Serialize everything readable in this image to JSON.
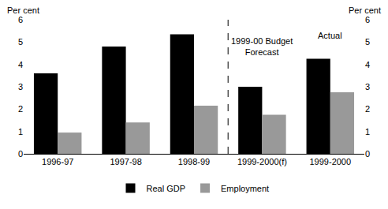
{
  "chart_data": {
    "type": "bar",
    "categories": [
      "1996-97",
      "1997-98",
      "1998-99",
      "1999-2000(f)",
      "1999-2000"
    ],
    "series": [
      {
        "name": "Real GDP",
        "color": "#000000",
        "values": [
          3.6,
          4.8,
          5.35,
          3.0,
          4.25
        ]
      },
      {
        "name": "Employment",
        "color": "#999999",
        "values": [
          0.95,
          1.4,
          2.15,
          1.75,
          2.75
        ]
      }
    ],
    "ylabel": "Per cent",
    "y2label": "Per cent",
    "ylim": [
      0,
      6
    ],
    "yticks": [
      0,
      1,
      2,
      3,
      4,
      5,
      6
    ],
    "y2lim": [
      0,
      6
    ],
    "y2ticks": [
      0,
      1,
      2,
      3,
      4,
      5,
      6
    ],
    "annotations": [
      {
        "text": "1999-00 Budget\nForecast",
        "category": "1999-2000(f)"
      },
      {
        "text": "Actual",
        "category": "1999-2000"
      }
    ],
    "grid": false,
    "legend": "bottom"
  }
}
